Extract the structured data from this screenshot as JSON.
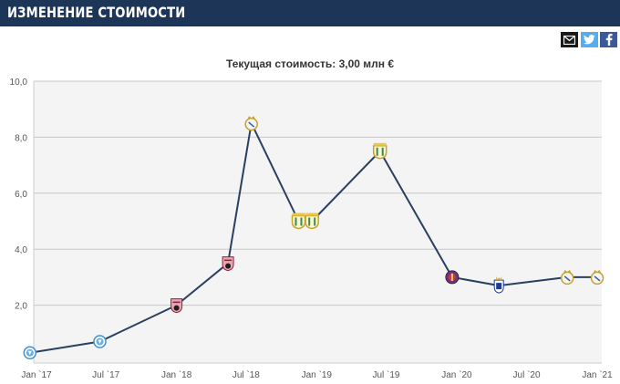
{
  "header": {
    "title": "ИЗМЕНЕНИЕ СТОИМОСТИ"
  },
  "share": {
    "email_icon": "envelope-icon",
    "twitter_icon": "twitter-bird-icon",
    "facebook_icon": "facebook-f-icon"
  },
  "colors": {
    "header_bg": "#1d3557",
    "line": "#2a4060",
    "plot_bg": "#f4f4f4",
    "twitter": "#55acee",
    "facebook": "#3b5998"
  },
  "chart_data": {
    "type": "line",
    "title": "Текущая стоимость: 3,00 млн €",
    "ylim": [
      0,
      10
    ],
    "y_ticks": [
      "2,0",
      "4,0",
      "6,0",
      "8,0",
      "10,0"
    ],
    "x_ticks": [
      "Jan `17",
      "Jul `17",
      "Jan `18",
      "Jul `18",
      "Jan `19",
      "Jul `19",
      "Jan `20",
      "Jul `20",
      "Jan `21"
    ],
    "grid": true,
    "points": [
      {
        "date": "2016-12-15",
        "value": 0.3,
        "badge": "dnipro"
      },
      {
        "date": "2017-06-15",
        "value": 0.7,
        "badge": "dnipro"
      },
      {
        "date": "2018-01-01",
        "value": 2.0,
        "badge": "zaragoza"
      },
      {
        "date": "2018-05-15",
        "value": 3.5,
        "badge": "zaragoza"
      },
      {
        "date": "2018-07-15",
        "value": 8.5,
        "badge": "real-madrid"
      },
      {
        "date": "2018-11-15",
        "value": 5.0,
        "badge": "leganes"
      },
      {
        "date": "2018-12-20",
        "value": 5.0,
        "badge": "leganes"
      },
      {
        "date": "2019-06-15",
        "value": 7.5,
        "badge": "leganes"
      },
      {
        "date": "2019-12-20",
        "value": 3.0,
        "badge": "real-valladolid"
      },
      {
        "date": "2020-04-20",
        "value": 2.7,
        "badge": "real-oviedo"
      },
      {
        "date": "2020-10-15",
        "value": 3.0,
        "badge": "real-madrid"
      },
      {
        "date": "2021-01-01",
        "value": 3.0,
        "badge": "real-madrid"
      }
    ]
  }
}
